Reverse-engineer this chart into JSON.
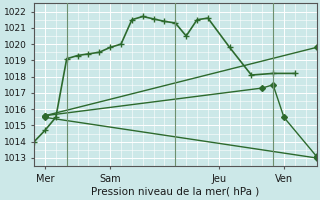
{
  "xlabel": "Pression niveau de la mer( hPa )",
  "bg_color": "#cce8e8",
  "grid_color": "#ffffff",
  "line_color": "#2d6a2d",
  "vline_color": "#6e8f6e",
  "ylim": [
    1012.5,
    1022.5
  ],
  "yticks": [
    1013,
    1014,
    1015,
    1016,
    1017,
    1018,
    1019,
    1020,
    1021,
    1022
  ],
  "xlim": [
    0,
    13
  ],
  "xtick_labels": [
    "Mer",
    "Sam",
    "Jeu",
    "Ven"
  ],
  "xtick_positions": [
    0.5,
    3.5,
    8.5,
    11.5
  ],
  "vline_positions": [
    1.5,
    6.5,
    11.0
  ],
  "series_main": {
    "x": [
      0.0,
      0.5,
      1.0,
      1.5,
      2.0,
      2.5,
      3.0,
      3.5,
      4.0,
      4.5,
      5.0,
      5.5,
      6.0,
      6.5,
      7.0,
      7.5,
      8.0,
      9.0,
      10.0,
      11.0,
      12.0
    ],
    "y": [
      1014.0,
      1014.7,
      1015.5,
      1019.1,
      1019.3,
      1019.4,
      1019.5,
      1019.8,
      1020.0,
      1021.5,
      1021.7,
      1021.55,
      1021.4,
      1021.3,
      1020.5,
      1021.5,
      1021.6,
      1019.8,
      1018.1,
      1018.2,
      1018.2
    ],
    "marker": "+",
    "markersize": 5,
    "linewidth": 1.2
  },
  "series_fan": [
    {
      "x": [
        0.5,
        13.0
      ],
      "y": [
        1015.6,
        1019.8
      ],
      "marker": "D",
      "markersize": 3,
      "linewidth": 1.0
    },
    {
      "x": [
        0.5,
        10.5,
        11.0,
        11.5,
        13.0
      ],
      "y": [
        1015.6,
        1017.3,
        1017.5,
        1015.5,
        1013.1
      ],
      "marker": "D",
      "markersize": 3,
      "linewidth": 1.0
    },
    {
      "x": [
        0.5,
        13.0
      ],
      "y": [
        1015.5,
        1013.0
      ],
      "marker": "D",
      "markersize": 3,
      "linewidth": 1.0
    }
  ]
}
